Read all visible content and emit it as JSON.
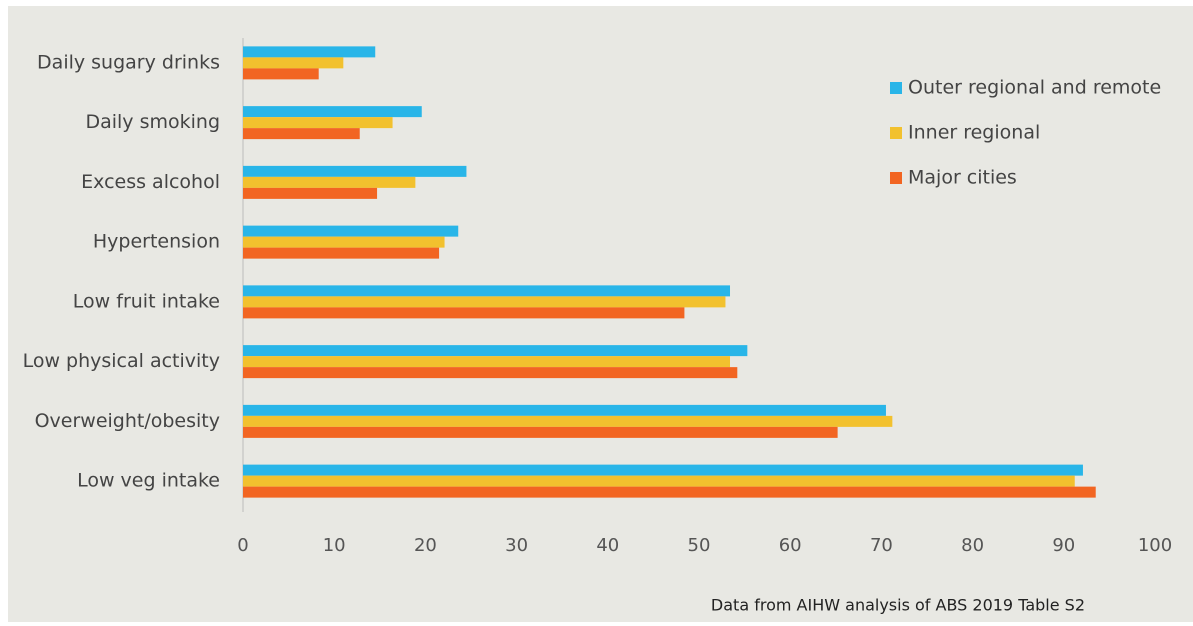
{
  "chart_data": {
    "type": "barh",
    "categories": [
      "Daily sugary drinks",
      "Daily smoking",
      "Excess alcohol",
      "Hypertension",
      "Low fruit intake",
      "Low physical activity",
      "Overweight/obesity",
      "Low veg intake"
    ],
    "series": [
      {
        "name": "Outer regional and remote",
        "color": "#29b5e8",
        "values": [
          14.5,
          19.6,
          24.5,
          23.6,
          53.4,
          55.3,
          70.5,
          92.1
        ]
      },
      {
        "name": "Inner regional",
        "color": "#f2c12e",
        "values": [
          11,
          16.4,
          18.9,
          22.1,
          52.9,
          53.4,
          71.2,
          91.2
        ]
      },
      {
        "name": "Major cities",
        "color": "#f26522",
        "values": [
          8.3,
          12.8,
          14.7,
          21.5,
          48.4,
          54.2,
          65.2,
          93.5
        ]
      }
    ],
    "xlim": [
      0,
      100
    ],
    "xticks": [
      0,
      10,
      20,
      30,
      40,
      50,
      60,
      70,
      80,
      90,
      100
    ],
    "legend": "upper right",
    "annotation": "Data from AIHW analysis of ABS 2019 Table S2"
  }
}
